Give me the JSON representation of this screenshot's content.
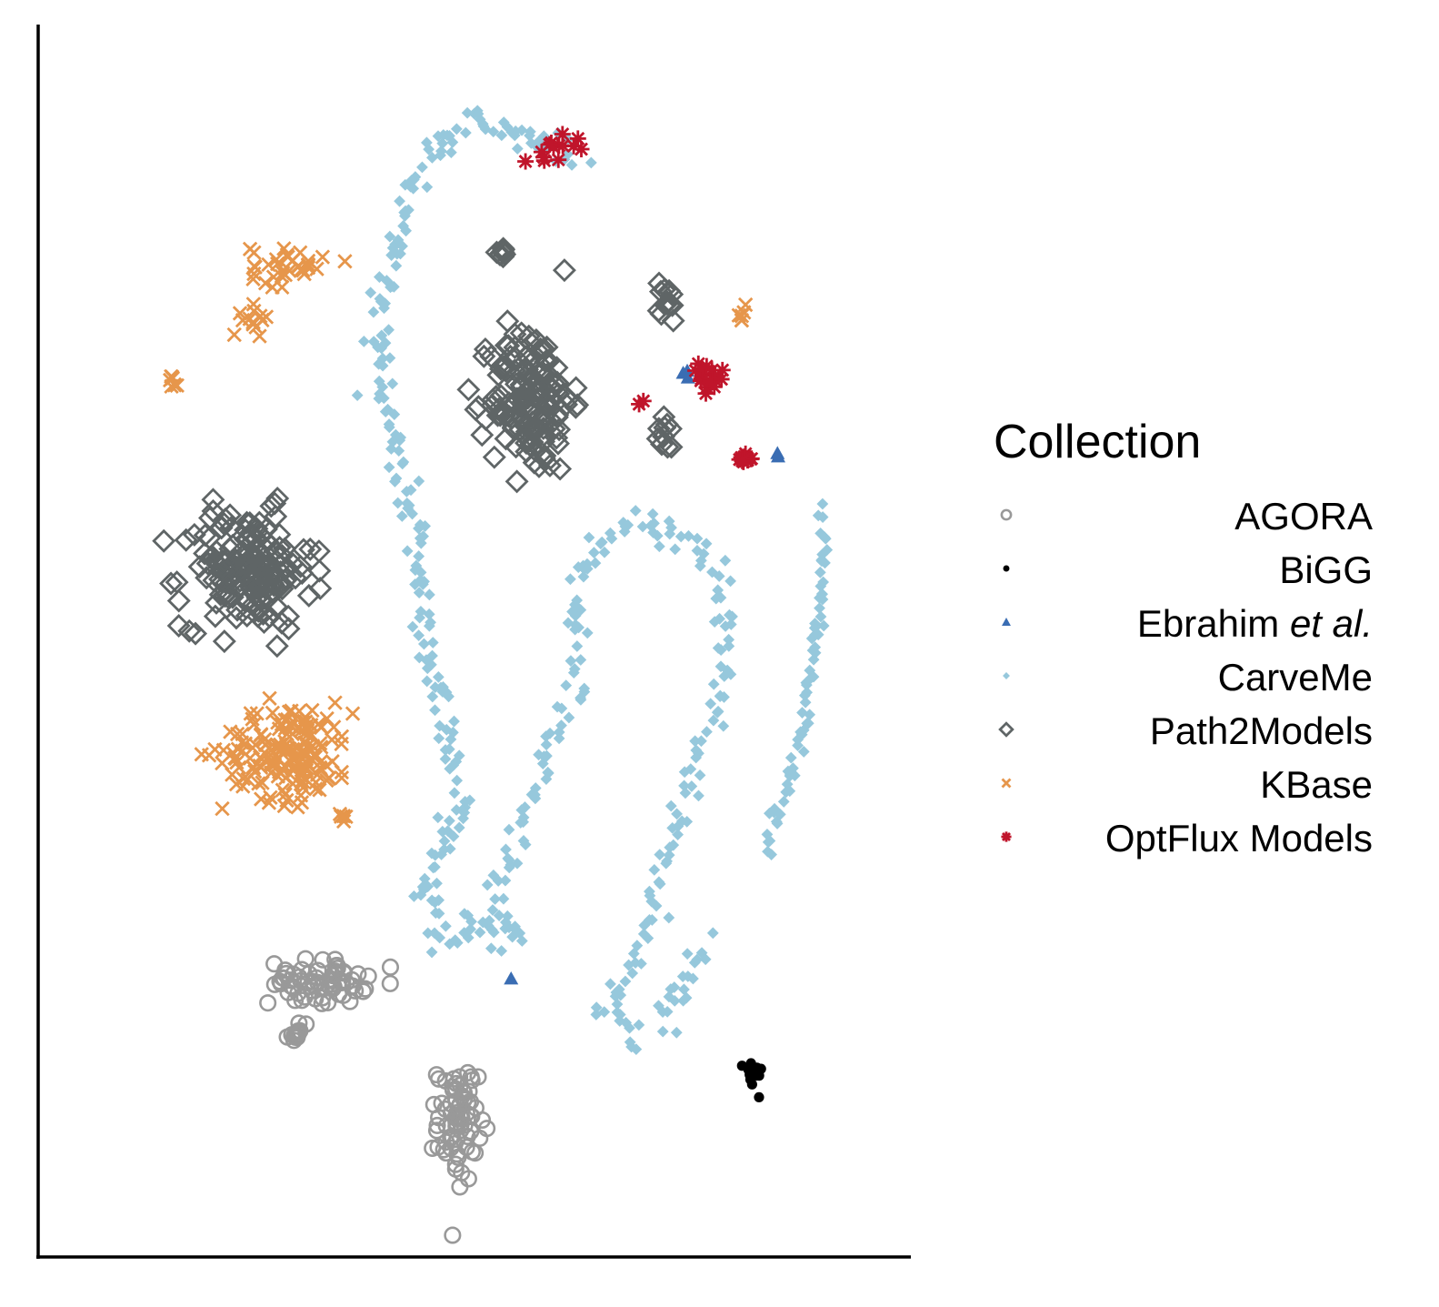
{
  "chart_data": {
    "type": "scatter",
    "title": "",
    "xlabel": "",
    "ylabel": "",
    "xlim": [
      0,
      100
    ],
    "ylim": [
      0,
      100
    ],
    "grid": false,
    "axis_ticks": false,
    "legend_placement": "right",
    "legend_title": "Collection",
    "series": [
      {
        "name": "AGORA",
        "name_plain": "AGORA",
        "name_italic": "",
        "color": "#999999",
        "marker": "open-circle",
        "clusters": [
          {
            "cx": 31.5,
            "cy": 20.5,
            "sx": 4.8,
            "sy": 1.6,
            "n": 70
          },
          {
            "cx": 29.2,
            "cy": 16.2,
            "sx": 1.0,
            "sy": 0.8,
            "n": 12
          },
          {
            "cx": 48.2,
            "cy": 8.3,
            "sx": 2.0,
            "sy": 4.2,
            "n": 75
          }
        ]
      },
      {
        "name": "BiGG",
        "name_plain": "BiGG",
        "name_italic": "",
        "color": "#000000",
        "marker": "filled-circle",
        "clusters": [
          {
            "cx": 83.5,
            "cy": 12.5,
            "sx": 0.9,
            "sy": 1.1,
            "n": 18
          }
        ]
      },
      {
        "name": "Ebrahim et al.",
        "name_plain": "Ebrahim ",
        "name_italic": "et al.",
        "color": "#3a6db3",
        "marker": "filled-triangle",
        "clusters": [
          {
            "cx": 75.5,
            "cy": 73.3,
            "sx": 0.5,
            "sy": 0.3,
            "n": 3
          },
          {
            "cx": 86.6,
            "cy": 66.2,
            "sx": 0.3,
            "sy": 0.2,
            "n": 2
          },
          {
            "cx": 54.5,
            "cy": 20.8,
            "sx": 0.1,
            "sy": 0.1,
            "n": 1
          }
        ]
      },
      {
        "name": "CarveMe",
        "name_plain": "CarveMe",
        "name_italic": "",
        "color": "#96c8dc",
        "marker": "filled-diamond",
        "curves": [
          {
            "pts": [
              [
                62,
                92
              ],
              [
                55,
                94
              ],
              [
                50,
                95
              ],
              [
                46,
                93
              ],
              [
                42,
                87
              ],
              [
                39,
                80
              ],
              [
                39,
                72
              ],
              [
                41,
                66
              ],
              [
                43,
                60
              ],
              [
                44,
                54
              ],
              [
                45,
                48
              ],
              [
                47,
                42
              ],
              [
                49,
                36
              ],
              [
                46,
                31
              ],
              [
                44,
                28
              ],
              [
                47,
                24
              ],
              [
                52,
                26
              ],
              [
                55,
                24
              ]
            ],
            "n": 240,
            "spread": 1.3
          },
          {
            "pts": [
              [
                54,
                24
              ],
              [
                53,
                30
              ],
              [
                57,
                36
              ],
              [
                59,
                40
              ],
              [
                63,
                46
              ],
              [
                62,
                52
              ],
              [
                63,
                57
              ],
              [
                68,
                60
              ],
              [
                72,
                60
              ],
              [
                78,
                58
              ],
              [
                80,
                52
              ],
              [
                80,
                46
              ],
              [
                77,
                40
              ],
              [
                74,
                34
              ],
              [
                72,
                28
              ],
              [
                69,
                22
              ],
              [
                66,
                18
              ],
              [
                69,
                16
              ],
              [
                74,
                18
              ],
              [
                78,
                24
              ]
            ],
            "n": 220,
            "spread": 1.2
          },
          {
            "pts": [
              [
                92,
                61
              ],
              [
                92,
                56
              ],
              [
                91,
                50
              ],
              [
                90,
                44
              ],
              [
                88,
                38
              ],
              [
                85,
                32
              ]
            ],
            "n": 70,
            "spread": 0.7
          }
        ]
      },
      {
        "name": "Path2Models",
        "name_plain": "Path2Models",
        "name_italic": "",
        "color": "#5f6566",
        "marker": "open-diamond",
        "clusters": [
          {
            "cx": 23.0,
            "cy": 56.2,
            "sx": 6.5,
            "sy": 4.2,
            "n": 170
          },
          {
            "cx": 57.0,
            "cy": 71.0,
            "sx": 4.0,
            "sy": 5.4,
            "n": 150
          },
          {
            "cx": 53.5,
            "cy": 83.5,
            "sx": 0.8,
            "sy": 0.6,
            "n": 8
          },
          {
            "cx": 72.8,
            "cy": 79.2,
            "sx": 1.8,
            "sy": 1.5,
            "n": 14
          },
          {
            "cx": 73.3,
            "cy": 67.8,
            "sx": 1.2,
            "sy": 1.3,
            "n": 10
          }
        ]
      },
      {
        "name": "KBase",
        "name_plain": "KBase",
        "name_italic": "",
        "color": "#e6964b",
        "marker": "cross",
        "clusters": [
          {
            "cx": 28.0,
            "cy": 40.5,
            "sx": 6.5,
            "sy": 3.5,
            "n": 170
          },
          {
            "cx": 27.8,
            "cy": 82.5,
            "sx": 3.6,
            "sy": 1.5,
            "n": 35
          },
          {
            "cx": 24.0,
            "cy": 77.8,
            "sx": 1.3,
            "sy": 1.0,
            "n": 14
          },
          {
            "cx": 14.3,
            "cy": 72.5,
            "sx": 0.6,
            "sy": 0.6,
            "n": 8
          },
          {
            "cx": 82.3,
            "cy": 78.2,
            "sx": 0.5,
            "sy": 0.6,
            "n": 6
          },
          {
            "cx": 34.5,
            "cy": 34.8,
            "sx": 0.4,
            "sy": 0.8,
            "n": 5
          }
        ]
      },
      {
        "name": "OptFlux Models",
        "name_plain": "OptFlux Models",
        "name_italic": "",
        "color": "#c0152b",
        "marker": "asterisk",
        "clusters": [
          {
            "cx": 60.5,
            "cy": 93.0,
            "sx": 4.0,
            "sy": 1.0,
            "n": 14
          },
          {
            "cx": 78.0,
            "cy": 72.5,
            "sx": 1.6,
            "sy": 1.2,
            "n": 16
          },
          {
            "cx": 82.5,
            "cy": 65.8,
            "sx": 0.9,
            "sy": 0.3,
            "n": 12
          },
          {
            "cx": 70.0,
            "cy": 70.8,
            "sx": 0.3,
            "sy": 0.3,
            "n": 2
          }
        ]
      }
    ]
  }
}
